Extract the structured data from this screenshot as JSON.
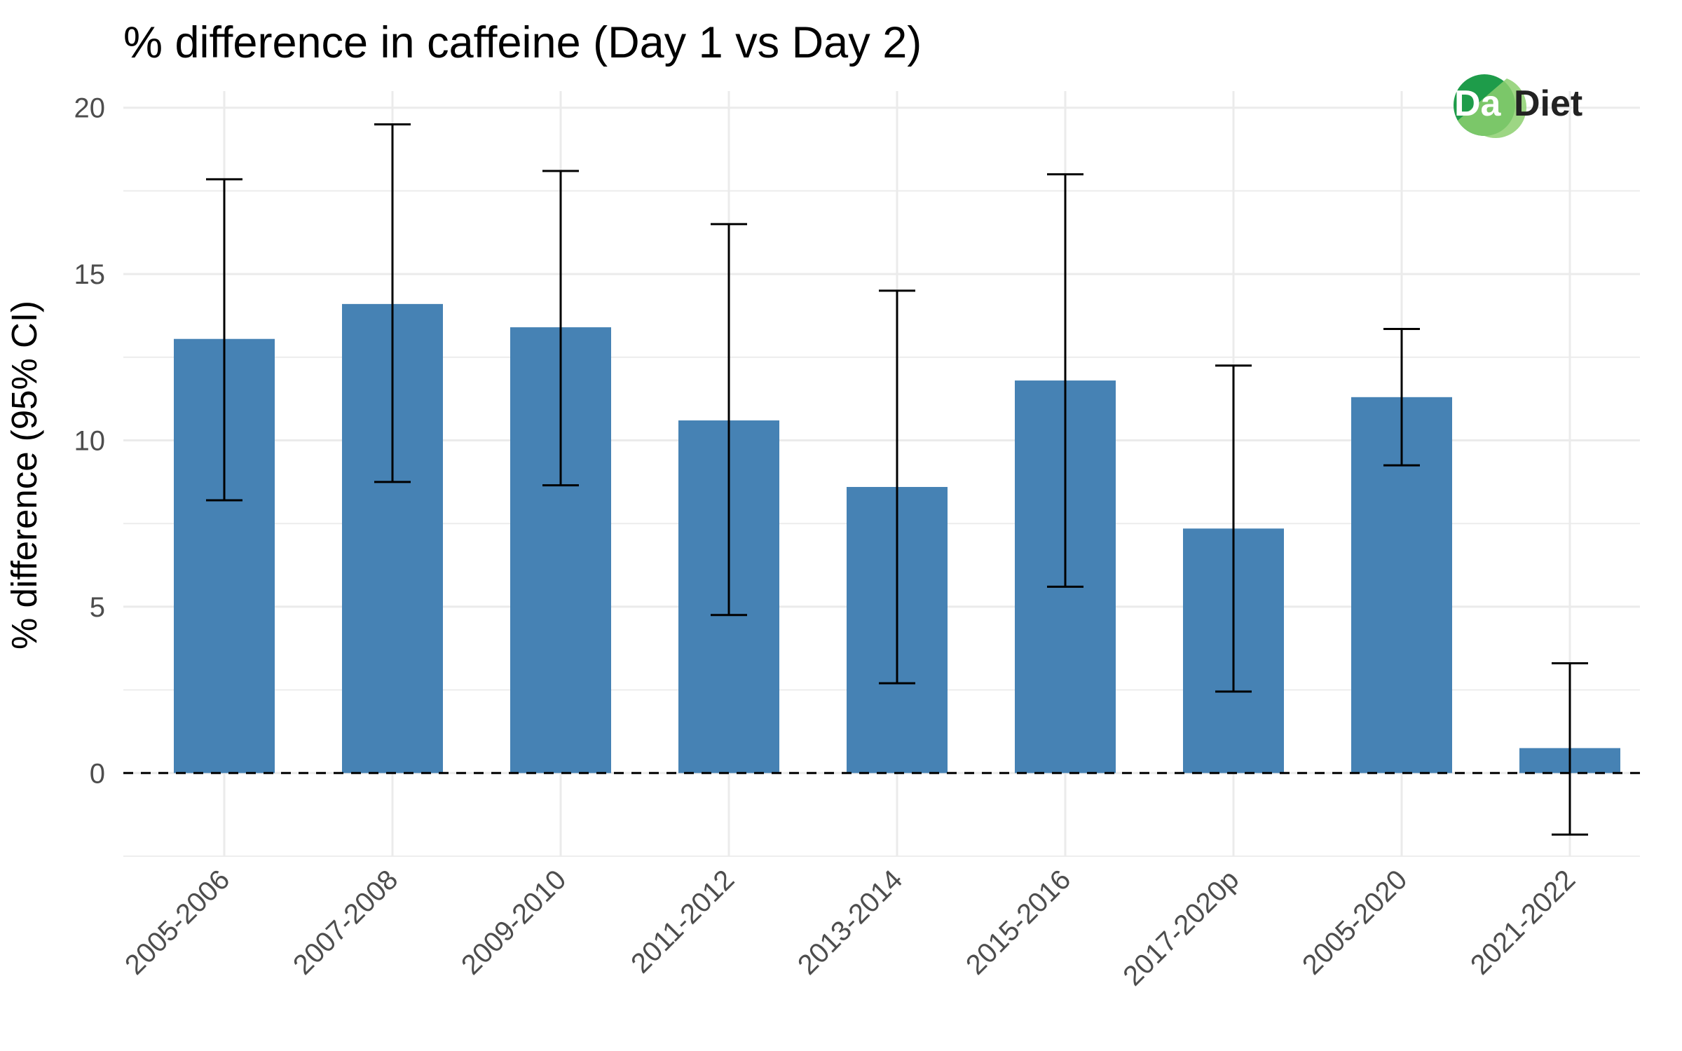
{
  "chart_data": {
    "type": "bar",
    "title": "% difference in caffeine (Day 1 vs Day 2)",
    "xlabel": "",
    "ylabel": "% difference (95% CI)",
    "categories": [
      "2005-2006",
      "2007-2008",
      "2009-2010",
      "2011-2012",
      "2013-2014",
      "2015-2016",
      "2017-2020p",
      "2005-2020",
      "2021-2022"
    ],
    "values": [
      13.05,
      14.1,
      13.4,
      10.6,
      8.6,
      11.8,
      7.35,
      11.3,
      0.75
    ],
    "ci_lower": [
      8.2,
      8.75,
      8.65,
      4.75,
      2.7,
      5.6,
      2.45,
      9.25,
      -1.85
    ],
    "ci_upper": [
      17.85,
      19.5,
      18.1,
      16.5,
      14.5,
      18.0,
      12.25,
      13.35,
      3.3
    ],
    "ylim": [
      -2.5,
      20.5
    ],
    "yticks": [
      0,
      5,
      10,
      15,
      20
    ],
    "reference_line": 0,
    "grid": true,
    "bar_color": "#4682b4",
    "legend": "none"
  },
  "logo": {
    "badge": "Da",
    "text": "Diet",
    "colors": {
      "badge_dark": "#1e9c4a",
      "badge_light": "#8ccf6e",
      "text": "#222222"
    }
  }
}
